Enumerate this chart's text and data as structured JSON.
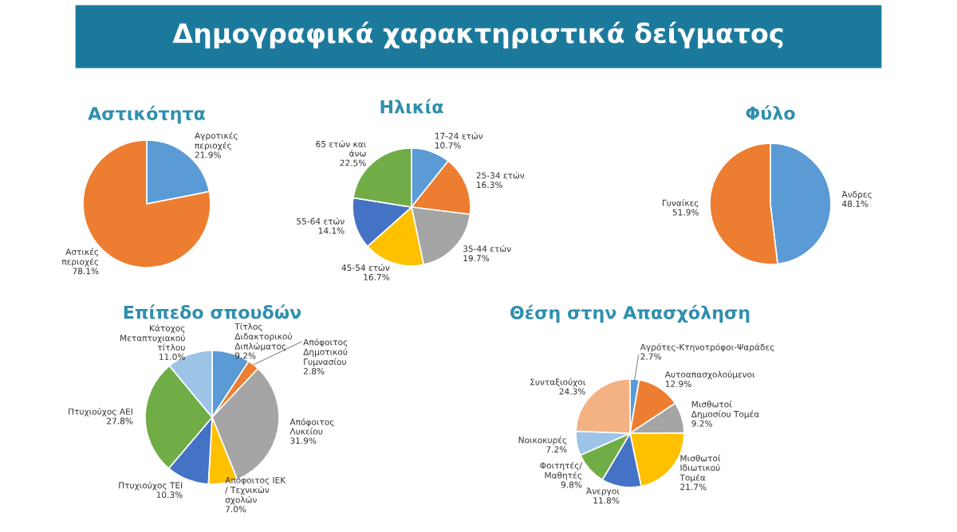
{
  "chart_data": [
    {
      "type": "pie",
      "title": "Αστικότητα",
      "annotations": [
        "Δημογραφικά χαρακτηριστικά δείγματος"
      ],
      "categories": [
        "Αγροτικές περιοχές",
        "Αστικές περιοχές"
      ],
      "values": [
        21.9,
        78.1
      ],
      "value_labels": [
        "21.9%",
        "78.1%"
      ],
      "colors": [
        "#5b9bd5",
        "#ed7d31"
      ]
    },
    {
      "type": "pie",
      "title": "Ηλικία",
      "categories": [
        "17-24 ετών",
        "25-34 ετών",
        "35-44 ετών",
        "45-54 ετών",
        "55-64 ετών",
        "65 ετών και άνω"
      ],
      "values": [
        10.7,
        16.3,
        19.7,
        16.7,
        14.1,
        22.5
      ],
      "value_labels": [
        "10.7%",
        "16.3%",
        "19.7%",
        "16.7%",
        "14.1%",
        "22.5%"
      ],
      "colors": [
        "#5b9bd5",
        "#ed7d31",
        "#a5a5a5",
        "#ffc000",
        "#4472c4",
        "#70ad47"
      ]
    },
    {
      "type": "pie",
      "title": "Φύλο",
      "categories": [
        "Άνδρες",
        "Γυναίκες"
      ],
      "values": [
        48.1,
        51.9
      ],
      "value_labels": [
        "48.1%",
        "51.9%"
      ],
      "colors": [
        "#5b9bd5",
        "#ed7d31"
      ]
    },
    {
      "type": "pie",
      "title": "Επίπεδο σπουδών",
      "categories": [
        "Τίτλος Διδακτορικού Διπλώματος",
        "Απόφοιτος Δημοτικού Γυμνασίου",
        "Απόφοιτος Λυκείου",
        "Απόφοιτος ΙΕΚ / Τεχνικών σχολών",
        "Πτυχιούχος ΤΕΙ",
        "Πτυχιούχος ΑΕΙ",
        "Κάτοχος Μεταπτυχιακού τίτλου"
      ],
      "values": [
        9.2,
        2.8,
        31.9,
        7.0,
        10.3,
        27.8,
        11.0
      ],
      "value_labels": [
        "9.2%",
        "2.8%",
        "31.9%",
        "7.0%",
        "10.3%",
        "27.8%",
        "11.0%"
      ],
      "colors": [
        "#5b9bd5",
        "#ed7d31",
        "#a5a5a5",
        "#ffc000",
        "#4472c4",
        "#70ad47",
        "#9dc3e6"
      ]
    },
    {
      "type": "pie",
      "title": "Θέση στην Απασχόληση",
      "categories": [
        "Αγρότες-Κτηνοτρόφοι-Ψαράδες",
        "Αυτοαπασχολούμενοι",
        "Μισθωτοί Δημοσίου Τομέα",
        "Μισθωτοί Ιδιωτικού Τομέα",
        "Άνεργοι",
        "Φοιτητές/ Μαθητές",
        "Νοικοκυρές",
        "Συνταξιούχοι"
      ],
      "values": [
        2.7,
        12.9,
        9.2,
        21.7,
        11.8,
        9.8,
        7.2,
        24.3
      ],
      "value_labels": [
        "2.7%",
        "12.9%",
        "9.2%",
        "21.7%",
        "11.8%",
        "9.8%",
        "7.2%",
        "24.3%"
      ],
      "colors": [
        "#5b9bd5",
        "#ed7d31",
        "#a5a5a5",
        "#ffc000",
        "#4472c4",
        "#70ad47",
        "#9dc3e6",
        "#f4b183"
      ]
    }
  ]
}
